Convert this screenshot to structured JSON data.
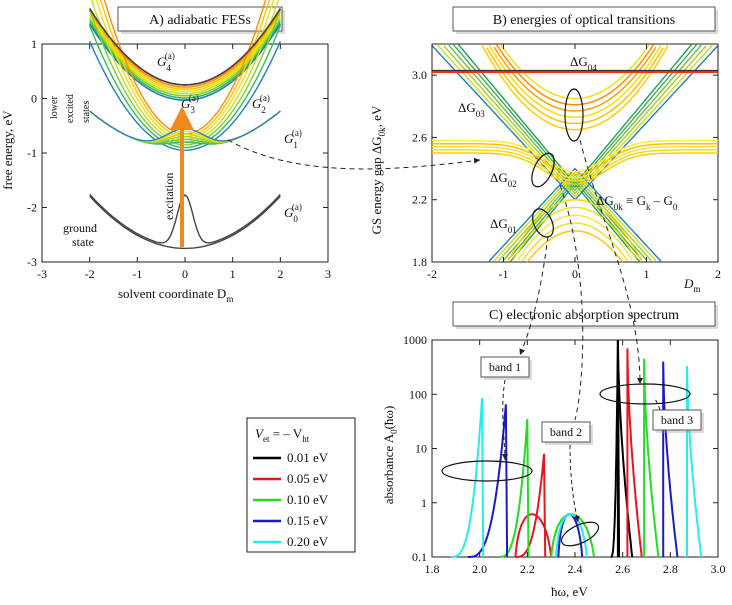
{
  "panels": {
    "A": {
      "title": "A) adiabatic FESs",
      "ylabel": "free energy, eV",
      "xlabel": "solvent coordinate D",
      "xlabel_sub": "m",
      "xticks": [
        "-3",
        "-2",
        "-1",
        "0",
        "1",
        "2",
        "3"
      ],
      "yticks": [
        "1",
        "0",
        "-1",
        "-2",
        "-3"
      ],
      "curve_labels": [
        "G",
        "G",
        "G",
        "G",
        "G"
      ],
      "curve_sub": [
        "4",
        "3",
        "2",
        "1",
        "0"
      ],
      "curve_sup": "(a)",
      "lower_excited": [
        "lower",
        "excited",
        "states"
      ],
      "ground_state": [
        "ground",
        "state"
      ],
      "excitation": "excitation"
    },
    "B": {
      "title": "B) energies of optical transitions",
      "ylabel_main": "GS energy gap ΔG",
      "ylabel_sub": "0k",
      "ylabel_unit": ", eV",
      "xticks": [
        "-2",
        "-1",
        "0",
        "1",
        "2"
      ],
      "yticks": [
        "3.0",
        "2.6",
        "2.2",
        "1.8"
      ],
      "xlabel": "D",
      "xlabel_sub": "m",
      "labels": [
        "ΔG",
        "ΔG",
        "ΔG",
        "ΔG"
      ],
      "label_subs": [
        "04",
        "03",
        "02",
        "01"
      ],
      "formula": "ΔG",
      "formula_sub1": "0k",
      "formula_mid": " ≡ G",
      "formula_sub2": "k",
      "formula_end": " – G",
      "formula_sub3": "0"
    },
    "C": {
      "title": "C) electronic absorption spectrum",
      "ylabel": "absorbance A",
      "ylabel_sub": "0",
      "ylabel_end": "(ħω)",
      "xlabel": "ħω, eV",
      "xticks": [
        "1.8",
        "2.0",
        "2.2",
        "2.4",
        "2.6",
        "2.8",
        "3.0"
      ],
      "yticks": [
        "1000",
        "100",
        "10",
        "1",
        "0.1"
      ],
      "bands": [
        "band 1",
        "band 2",
        "band 3"
      ]
    }
  },
  "legend": {
    "title_main": "V",
    "title_sub1": "et",
    "title_mid": " = – V",
    "title_sub2": "ht",
    "entries": [
      {
        "label": "0.01 eV",
        "color": "#000000"
      },
      {
        "label": "0.05 eV",
        "color": "#e8141e"
      },
      {
        "label": "0.10 eV",
        "color": "#22dd22"
      },
      {
        "label": "0.15 eV",
        "color": "#1a1ac8"
      },
      {
        "label": "0.20 eV",
        "color": "#22eeee"
      }
    ]
  },
  "chart_data": [
    {
      "type": "line",
      "title": "A) adiabatic FESs",
      "xlabel": "solvent coordinate Dm",
      "ylabel": "free energy, eV",
      "xlim": [
        -3,
        3
      ],
      "ylim": [
        -3,
        1
      ],
      "series": [
        {
          "name": "G4(a)",
          "x": [
            -2,
            -1,
            0,
            1,
            2
          ],
          "y": [
            1.6,
            0.55,
            0.25,
            0.55,
            1.6
          ]
        },
        {
          "name": "G3(a)",
          "x": [
            -2,
            -1,
            0,
            1,
            2
          ],
          "y": [
            1.35,
            0.45,
            0.0,
            0.45,
            1.35
          ]
        },
        {
          "name": "G2(a)",
          "x": [
            -2,
            -1,
            0,
            1,
            2
          ],
          "y": [
            1.0,
            0.0,
            -0.9,
            0.0,
            1.0
          ]
        },
        {
          "name": "G1(a)",
          "x": [
            -2,
            -1,
            -0.4,
            0,
            0.4,
            1,
            2
          ],
          "y": [
            -0.3,
            -0.9,
            -0.7,
            -0.45,
            -0.7,
            -0.9,
            -0.3
          ]
        },
        {
          "name": "G0(a)",
          "x": [
            -2,
            -1,
            -0.2,
            0,
            0.2,
            1,
            2
          ],
          "y": [
            -1.8,
            -2.5,
            -2.0,
            -2.75,
            -2.0,
            -2.5,
            -1.8
          ]
        }
      ]
    },
    {
      "type": "line",
      "title": "B) energies of optical transitions",
      "xlabel": "Dm",
      "ylabel": "GS energy gap ΔG0k, eV",
      "xlim": [
        -2,
        2
      ],
      "ylim": [
        1.8,
        3.2
      ],
      "series": [
        {
          "name": "ΔG04",
          "x": [
            -2,
            0,
            2
          ],
          "y": [
            3.02,
            3.02,
            3.02
          ]
        },
        {
          "name": "ΔG03",
          "x": [
            -2,
            -1,
            0,
            1,
            2
          ],
          "y": [
            3.2,
            2.9,
            2.7,
            2.9,
            3.2
          ]
        },
        {
          "name": "ΔG02",
          "x": [
            -2,
            -1,
            0,
            1,
            2
          ],
          "y": [
            2.55,
            2.55,
            2.3,
            2.55,
            2.55
          ]
        },
        {
          "name": "ΔG01",
          "x": [
            -1,
            0,
            1
          ],
          "y": [
            1.8,
            2.3,
            1.8
          ]
        }
      ]
    },
    {
      "type": "line",
      "title": "C) electronic absorption spectrum",
      "xlabel": "ħω, eV",
      "ylabel": "absorbance A0(ħω)",
      "xlim": [
        1.8,
        3.0
      ],
      "ylim": [
        0.1,
        1000
      ],
      "yscale": "log",
      "series": [
        {
          "name": "0.01 eV",
          "x": [
            2.55,
            2.58,
            2.59,
            2.6,
            2.63
          ],
          "y": [
            0.1,
            1000,
            0.5,
            0.1,
            0.1
          ]
        },
        {
          "name": "0.05 eV",
          "x": [
            2.15,
            2.26,
            2.27,
            2.62,
            2.62,
            2.65
          ],
          "y": [
            0.1,
            0.9,
            8,
            0.1,
            700,
            0.1
          ]
        },
        {
          "name": "0.10 eV",
          "x": [
            2.08,
            2.2,
            2.2,
            2.48,
            2.69,
            2.72
          ],
          "y": [
            0.1,
            35,
            0.1,
            0.1,
            450,
            0.1
          ]
        },
        {
          "name": "0.15 eV",
          "x": [
            1.95,
            2.11,
            2.12,
            2.43,
            2.77,
            2.83
          ],
          "y": [
            0.1,
            65,
            0.1,
            0.4,
            400,
            0.1
          ]
        },
        {
          "name": "0.20 eV",
          "x": [
            1.88,
            2.01,
            2.03,
            2.4,
            2.87,
            2.93
          ],
          "y": [
            0.1,
            85,
            0.1,
            0.5,
            330,
            0.1
          ]
        }
      ]
    }
  ]
}
